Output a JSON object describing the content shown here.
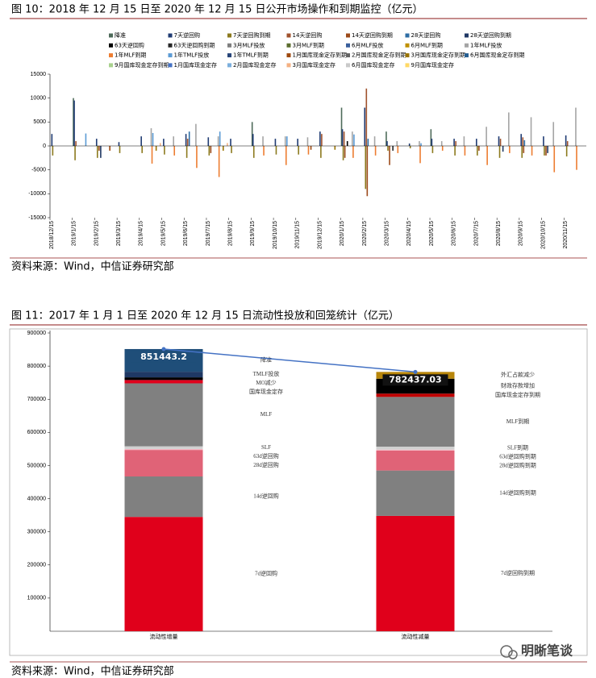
{
  "figures": [
    {
      "caption": "图 10：2018 年 12 月 15 日至 2020 年 12 月 15 日公开市场操作和到期监控（亿元）",
      "source": "资料来源：Wind，中信证券研究部"
    },
    {
      "caption": "图 11：2017 年 1 月 1 日至 2020 年 12 月 15 日流动性投放和回笼统计（亿元）",
      "source": "资料来源：Wind，中信证券研究部"
    }
  ],
  "watermark": "明晰笔谈",
  "chart_data": [
    {
      "type": "bar",
      "ylim": [
        -15000,
        15000
      ],
      "yticks": [
        -15000,
        -10000,
        -5000,
        0,
        5000,
        10000,
        15000
      ],
      "categories": [
        "2018/12/15",
        "2019/1/15",
        "2019/2/15",
        "2019/3/15",
        "2019/4/15",
        "2019/5/15",
        "2019/6/15",
        "2019/7/15",
        "2019/8/15",
        "2019/9/15",
        "2019/10/15",
        "2019/11/15",
        "2019/12/15",
        "2020/1/15",
        "2020/2/15",
        "2020/3/15",
        "2020/4/15",
        "2020/5/15",
        "2020/6/15",
        "2020/7/15",
        "2020/8/15",
        "2020/9/15",
        "2020/10/15",
        "2020/11/15"
      ],
      "series": [
        {
          "name": "降准",
          "color": "#4e6b5a",
          "values": [
            null,
            10000,
            null,
            null,
            null,
            null,
            null,
            null,
            null,
            5000,
            null,
            null,
            null,
            8000,
            null,
            3000,
            null,
            3500,
            null,
            null,
            null,
            null,
            null,
            null
          ]
        },
        {
          "name": "7天逆回购",
          "color": "#1f3b73",
          "values": [
            2500,
            9500,
            1500,
            800,
            2000,
            1500,
            2500,
            1800,
            1500,
            2500,
            1500,
            1500,
            3000,
            3500,
            8000,
            1000,
            500,
            1500,
            1500,
            1500,
            2000,
            2500,
            2000,
            2200
          ]
        },
        {
          "name": "7天逆回购到期",
          "color": "#8c7a1e",
          "values": [
            -2000,
            -3000,
            -2500,
            -1500,
            -1500,
            -1800,
            -2500,
            -2000,
            -1500,
            -2500,
            -1800,
            -1800,
            -2500,
            -3000,
            -9000,
            -1000,
            -500,
            -1500,
            -2000,
            -2000,
            -2500,
            -2500,
            -2000,
            -2200
          ]
        },
        {
          "name": "14天逆回购",
          "color": "#a0522d",
          "values": [
            null,
            1000,
            null,
            null,
            null,
            null,
            1500,
            null,
            null,
            null,
            null,
            null,
            2500,
            3000,
            12000,
            null,
            null,
            null,
            1000,
            null,
            1500,
            1800,
            null,
            1000
          ]
        },
        {
          "name": "14天逆回购到期",
          "color": "#9c4a1a",
          "values": [
            null,
            null,
            -1000,
            null,
            null,
            null,
            null,
            -1500,
            null,
            null,
            null,
            null,
            null,
            -2500,
            -10500,
            -4000,
            null,
            null,
            null,
            -1000,
            null,
            -1500,
            -2000,
            null
          ]
        },
        {
          "name": "28天逆回购",
          "color": "#2e6da4",
          "values": [
            null,
            null,
            null,
            null,
            null,
            null,
            3000,
            null,
            null,
            null,
            null,
            null,
            null,
            null,
            1500,
            null,
            null,
            null,
            null,
            null,
            null,
            1200,
            null,
            null
          ]
        },
        {
          "name": "28天逆回购到期",
          "color": "#203864",
          "values": [
            null,
            null,
            -2500,
            null,
            null,
            null,
            null,
            null,
            null,
            null,
            null,
            null,
            null,
            null,
            null,
            null,
            null,
            null,
            null,
            null,
            -1200,
            null,
            -1500,
            null
          ]
        },
        {
          "name": "63天逆回购",
          "color": "#000000",
          "values": [
            null,
            null,
            null,
            null,
            null,
            null,
            null,
            null,
            null,
            null,
            null,
            null,
            null,
            1000,
            null,
            null,
            null,
            null,
            null,
            null,
            null,
            null,
            null,
            null
          ]
        },
        {
          "name": "63天逆回购到期",
          "color": "#262626",
          "values": [
            null,
            null,
            null,
            null,
            null,
            null,
            null,
            null,
            null,
            null,
            null,
            null,
            null,
            null,
            null,
            -1000,
            null,
            null,
            null,
            null,
            null,
            null,
            null,
            null
          ]
        },
        {
          "name": "3月MLF投放",
          "color": "#7f7f7f",
          "values": [
            null,
            null,
            null,
            null,
            null,
            null,
            null,
            null,
            null,
            null,
            null,
            null,
            null,
            null,
            null,
            null,
            null,
            null,
            null,
            null,
            null,
            null,
            null,
            null
          ]
        },
        {
          "name": "3月MLF到期",
          "color": "#5c6e2f",
          "values": [
            null,
            null,
            null,
            null,
            null,
            null,
            null,
            null,
            null,
            null,
            null,
            null,
            null,
            null,
            null,
            null,
            null,
            null,
            null,
            null,
            null,
            null,
            null,
            null
          ]
        },
        {
          "name": "6月MLF投放",
          "color": "#3a5f9c",
          "values": [
            null,
            null,
            null,
            null,
            null,
            null,
            null,
            null,
            null,
            null,
            null,
            null,
            null,
            null,
            null,
            null,
            null,
            null,
            null,
            null,
            null,
            null,
            null,
            null
          ]
        },
        {
          "name": "6月MLF到期",
          "color": "#bf9000",
          "values": [
            null,
            null,
            null,
            null,
            null,
            null,
            null,
            null,
            null,
            null,
            null,
            null,
            null,
            null,
            null,
            null,
            null,
            null,
            null,
            null,
            null,
            null,
            null,
            null
          ]
        },
        {
          "name": "1年MLF投放",
          "color": "#a5a5a5",
          "values": [
            null,
            null,
            null,
            null,
            3700,
            2000,
            4600,
            2000,
            null,
            2000,
            2000,
            1800,
            null,
            3000,
            2000,
            1000,
            1000,
            1000,
            2000,
            4000,
            7000,
            6000,
            5000,
            8000
          ]
        },
        {
          "name": "1年MLF到期",
          "color": "#ed7d31",
          "values": [
            null,
            null,
            null,
            null,
            -3700,
            -2000,
            -4600,
            -6500,
            null,
            -2000,
            -4000,
            -1800,
            null,
            -2500,
            -2000,
            -1500,
            -3600,
            -1000,
            -2000,
            -4000,
            -1500,
            -2000,
            -5500,
            -5000
          ]
        },
        {
          "name": "1年TMLF投放",
          "color": "#5b9bd5",
          "values": [
            null,
            2600,
            null,
            null,
            2700,
            null,
            null,
            3000,
            null,
            null,
            2000,
            null,
            null,
            2400,
            null,
            null,
            560,
            null,
            null,
            null,
            null,
            null,
            null,
            null
          ]
        },
        {
          "name": "1年TMLF到期",
          "color": "#264478",
          "values": [
            null,
            null,
            null,
            null,
            null,
            null,
            null,
            null,
            null,
            null,
            null,
            null,
            null,
            null,
            null,
            null,
            null,
            null,
            null,
            null,
            null,
            null,
            null,
            null
          ]
        },
        {
          "name": "1月国库现金定存到期",
          "color": "#9e480e",
          "values": [
            null,
            null,
            -1000,
            null,
            null,
            null,
            null,
            null,
            null,
            null,
            null,
            -800,
            null,
            null,
            null,
            null,
            null,
            null,
            null,
            null,
            null,
            null,
            null,
            null
          ]
        },
        {
          "name": "2月国库现金定存到期",
          "color": "#636363",
          "values": [
            null,
            null,
            null,
            null,
            null,
            null,
            null,
            null,
            null,
            null,
            null,
            null,
            null,
            null,
            null,
            null,
            null,
            null,
            null,
            null,
            null,
            null,
            null,
            null
          ]
        },
        {
          "name": "3月国库现金定存到期",
          "color": "#997300",
          "values": [
            null,
            null,
            null,
            null,
            -1000,
            null,
            null,
            -1000,
            null,
            null,
            null,
            null,
            -800,
            null,
            null,
            null,
            null,
            null,
            null,
            null,
            null,
            null,
            null,
            null
          ]
        },
        {
          "name": "6月国库现金定存到期",
          "color": "#255e91",
          "values": [
            null,
            null,
            null,
            null,
            null,
            null,
            null,
            null,
            null,
            null,
            null,
            null,
            null,
            null,
            null,
            null,
            null,
            null,
            null,
            null,
            null,
            null,
            null,
            null
          ]
        },
        {
          "name": "9月国库现金定存到期",
          "color": "#a9d18e",
          "values": [
            null,
            null,
            null,
            null,
            null,
            null,
            null,
            null,
            null,
            null,
            null,
            null,
            null,
            null,
            null,
            null,
            null,
            null,
            null,
            null,
            null,
            null,
            null,
            null
          ]
        },
        {
          "name": "1月国库现金定存",
          "color": "#4472c4",
          "values": [
            null,
            null,
            null,
            null,
            null,
            null,
            null,
            null,
            null,
            null,
            null,
            null,
            null,
            null,
            null,
            null,
            null,
            null,
            null,
            null,
            null,
            null,
            null,
            null
          ]
        },
        {
          "name": "2月国库现金定存",
          "color": "#7cafdd",
          "values": [
            null,
            null,
            null,
            null,
            null,
            null,
            null,
            null,
            null,
            null,
            null,
            null,
            null,
            null,
            null,
            null,
            null,
            null,
            null,
            null,
            null,
            null,
            null,
            null
          ]
        },
        {
          "name": "3月国库现金定存",
          "color": "#f4b183",
          "values": [
            null,
            null,
            null,
            null,
            600,
            null,
            null,
            600,
            null,
            null,
            null,
            null,
            null,
            null,
            null,
            null,
            null,
            null,
            null,
            null,
            null,
            null,
            null,
            null
          ]
        },
        {
          "name": "6月国库现金定存",
          "color": "#c9c9c9",
          "values": [
            null,
            null,
            null,
            null,
            null,
            null,
            null,
            null,
            null,
            null,
            null,
            null,
            null,
            null,
            null,
            null,
            null,
            null,
            null,
            null,
            null,
            null,
            null,
            null
          ]
        },
        {
          "name": "9月国库现金定存",
          "color": "#ffd966",
          "values": [
            null,
            null,
            null,
            null,
            null,
            null,
            null,
            null,
            null,
            null,
            null,
            null,
            null,
            null,
            null,
            null,
            null,
            null,
            null,
            null,
            null,
            null,
            null,
            null
          ]
        }
      ]
    },
    {
      "type": "stacked_bar",
      "ylim": [
        0,
        900000
      ],
      "yticks": [
        100000,
        200000,
        300000,
        400000,
        500000,
        600000,
        700000,
        800000,
        900000
      ],
      "line_color": "#4472c4",
      "stacks": [
        {
          "category": "流动性增量",
          "total": 851443.2,
          "segments": [
            {
              "name": "7d逆回购",
              "value": 345000,
              "color": "#e0001b"
            },
            {
              "name": "14d逆回购",
              "value": 122000,
              "color": "#808080"
            },
            {
              "name": "28d逆回购",
              "value": 80000,
              "color": "#e06377"
            },
            {
              "name": "63d逆回购",
              "value": 3000,
              "color": "#f4b6c2"
            },
            {
              "name": "SLF",
              "value": 8000,
              "color": "#d0d0d0"
            },
            {
              "name": "MLF",
              "value": 190000,
              "color": "#808080"
            },
            {
              "name": "国库现金定存",
              "value": 10000,
              "color": "#e0001b"
            },
            {
              "name": "MO减少",
              "value": 8000,
              "color": "#000000"
            },
            {
              "name": "TMLF投放",
              "value": 17000,
              "color": "#1f3864"
            },
            {
              "name": "降准",
              "value": 68443.2,
              "color": "#1f4e79"
            }
          ]
        },
        {
          "category": "流动性减量",
          "total": 782437.03,
          "segments": [
            {
              "name": "7d逆回购到期",
              "value": 348000,
              "color": "#e0001b"
            },
            {
              "name": "14d逆回购到期",
              "value": 137000,
              "color": "#808080"
            },
            {
              "name": "28d逆回购到期",
              "value": 60000,
              "color": "#e06377"
            },
            {
              "name": "63d逆回购到期",
              "value": 3000,
              "color": "#f4b6c2"
            },
            {
              "name": "SLF到期",
              "value": 9000,
              "color": "#d0d0d0"
            },
            {
              "name": "MLF到期",
              "value": 150000,
              "color": "#808080"
            },
            {
              "name": "国库现金定存到期",
              "value": 10000,
              "color": "#c00000"
            },
            {
              "name": "财政存款增加",
              "value": 45000,
              "color": "#000000"
            },
            {
              "name": "外汇占款减少",
              "value": 20437.03,
              "color": "#b8860b"
            }
          ]
        }
      ]
    }
  ]
}
